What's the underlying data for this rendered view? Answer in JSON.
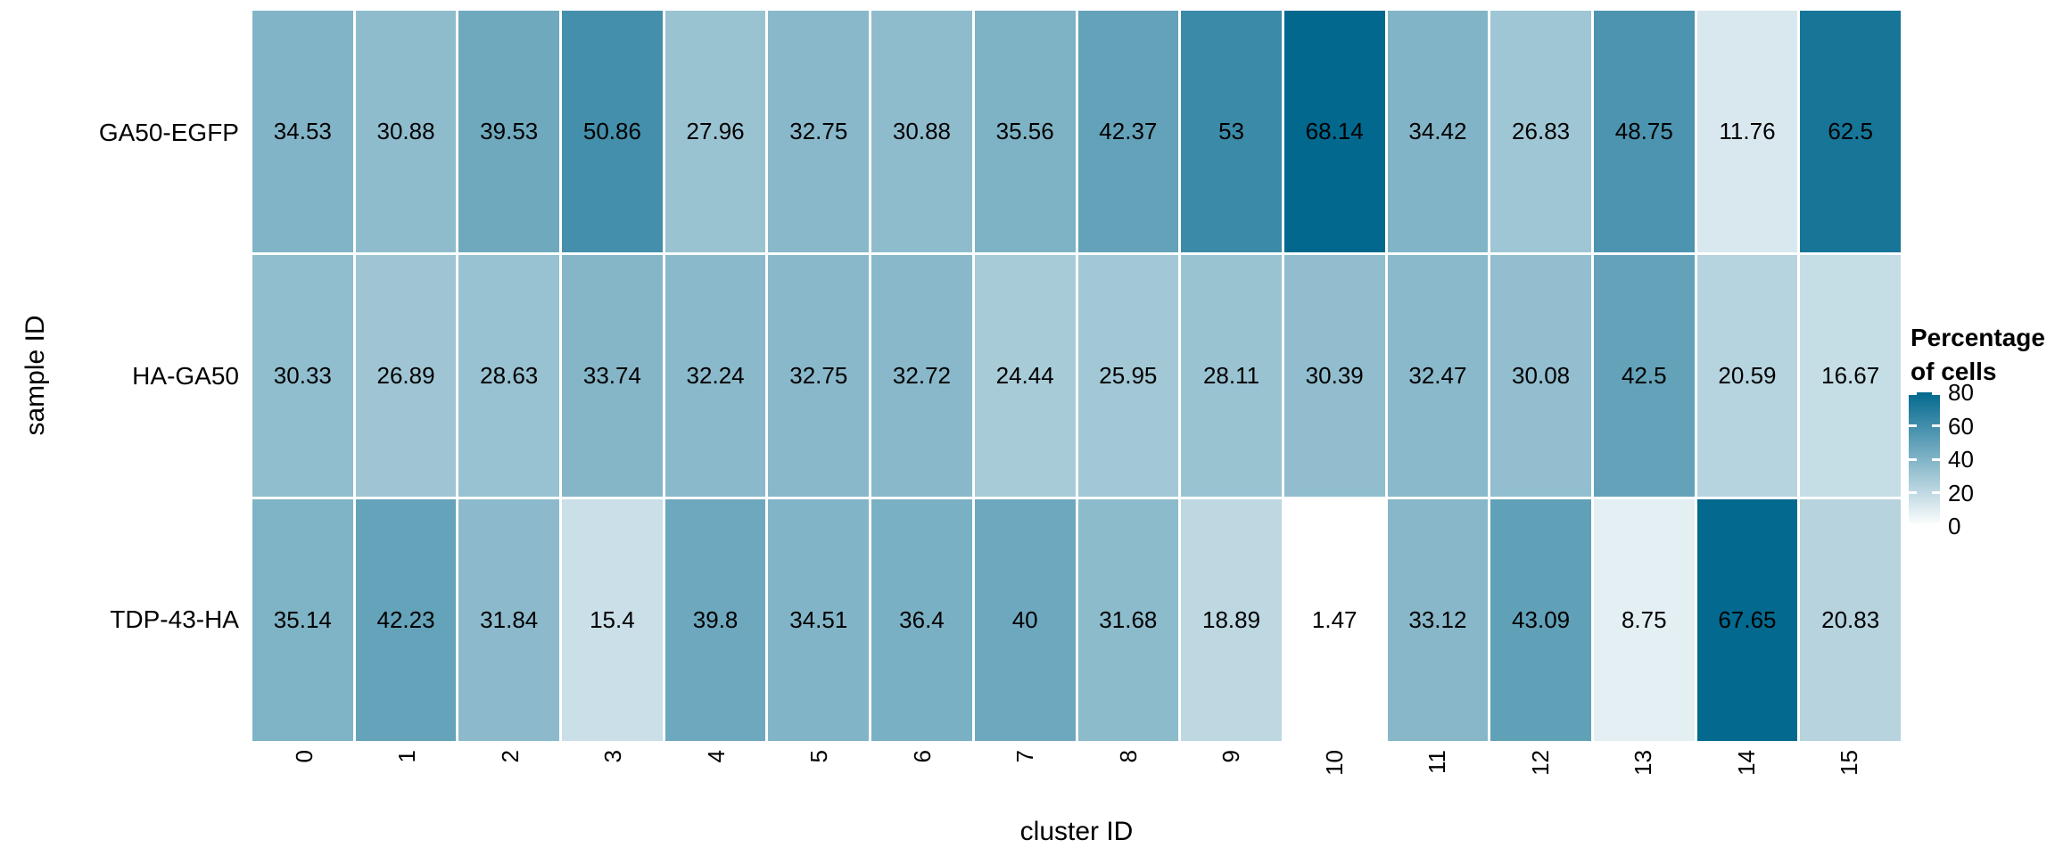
{
  "chart_data": {
    "type": "heatmap",
    "xlabel": "cluster ID",
    "ylabel": "sample ID",
    "columns": [
      "0",
      "1",
      "2",
      "3",
      "4",
      "5",
      "6",
      "7",
      "8",
      "9",
      "10",
      "11",
      "12",
      "13",
      "14",
      "15"
    ],
    "rows": [
      "GA50-EGFP",
      "HA-GA50",
      "TDP-43-HA"
    ],
    "values": [
      [
        34.53,
        30.88,
        39.53,
        50.86,
        27.96,
        32.75,
        30.88,
        35.56,
        42.37,
        53,
        68.14,
        34.42,
        26.83,
        48.75,
        11.76,
        62.5
      ],
      [
        30.33,
        26.89,
        28.63,
        33.74,
        32.24,
        32.75,
        32.72,
        24.44,
        25.95,
        28.11,
        30.39,
        32.47,
        30.08,
        42.5,
        20.59,
        16.67
      ],
      [
        35.14,
        42.23,
        31.84,
        15.4,
        39.8,
        34.51,
        36.4,
        40,
        31.68,
        18.89,
        1.47,
        33.12,
        43.09,
        8.75,
        67.65,
        20.83
      ]
    ],
    "colors": {
      "low": "#FFFFFF",
      "high": "#02688E",
      "cell_domain": [
        1.47,
        68.14
      ],
      "text": "#000000",
      "background": "#FFFFFF"
    },
    "legend": {
      "title_line1": "Percentage",
      "title_line2": "of cells",
      "ticks": [
        80,
        60,
        40,
        20,
        0
      ],
      "range": [
        0,
        80
      ],
      "position": "right"
    },
    "layout": {
      "grid": "off",
      "x_tick_rotation": -90
    }
  }
}
